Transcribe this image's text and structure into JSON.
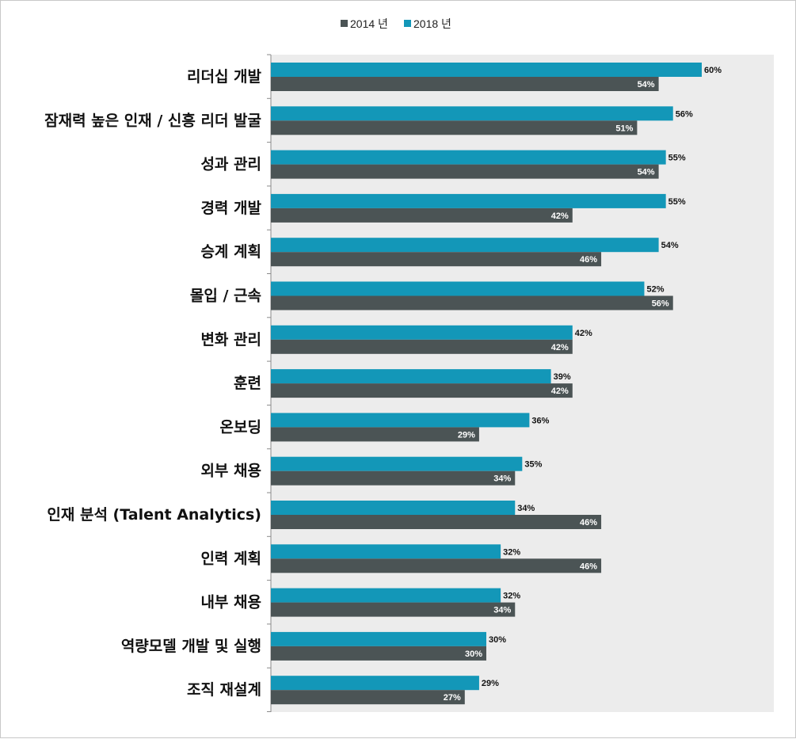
{
  "chart_data": {
    "type": "bar",
    "orientation": "horizontal",
    "value_format": "percent",
    "xlim": [
      0,
      70
    ],
    "grid": false,
    "legend_position": "top-center",
    "categories": [
      "리더십 개발",
      "잠재력 높은 인재 / 신흥 리더 발굴",
      "성과 관리",
      "경력 개발",
      "승계 계획",
      "몰입 / 근속",
      "변화 관리",
      "훈련",
      "온보딩",
      "외부 채용",
      "인재 분석 (Talent Analytics)",
      "인력 계획",
      "내부 채용",
      "역량모델 개발 및 실행",
      "조직 재설계"
    ],
    "series": [
      {
        "name": "2018 년",
        "color": "#1397b8",
        "label_color": "#111111",
        "values": [
          60,
          56,
          55,
          55,
          54,
          52,
          42,
          39,
          36,
          35,
          34,
          32,
          32,
          30,
          29
        ]
      },
      {
        "name": "2014 년",
        "color": "#4b5455",
        "label_color": "#ffffff",
        "values": [
          54,
          51,
          54,
          42,
          46,
          56,
          42,
          42,
          29,
          34,
          46,
          46,
          34,
          30,
          27
        ]
      }
    ],
    "legend_order": [
      "2014 년",
      "2018 년"
    ],
    "plot_background": "#ececec"
  }
}
